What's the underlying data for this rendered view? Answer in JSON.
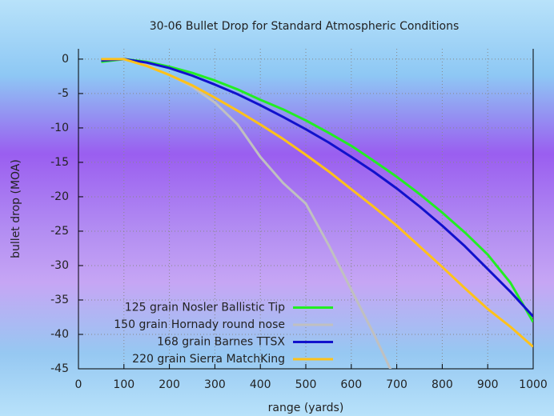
{
  "chart_data": {
    "type": "line",
    "title": "30-06 Bullet Drop for Standard Atmospheric Conditions",
    "xlabel": "range (yards)",
    "ylabel": "bullet drop (MOA)",
    "x": [
      50,
      100,
      150,
      200,
      250,
      300,
      350,
      400,
      450,
      500,
      550,
      600,
      650,
      700,
      750,
      800,
      850,
      900,
      950,
      1000
    ],
    "series": [
      {
        "name": "125 grain Nosler Ballistic Tip",
        "color": "#22ee22",
        "values": [
          -0.4,
          0,
          -0.4,
          -1.1,
          -2,
          -3.1,
          -4.4,
          -5.9,
          -7.3,
          -8.9,
          -10.7,
          -12.6,
          -14.8,
          -17.1,
          -19.6,
          -22.3,
          -25.2,
          -28.4,
          -32.5,
          -38.2
        ]
      },
      {
        "name": "150 grain Hornady round nose",
        "color": "#c0c0c0",
        "values": [
          null,
          0,
          -0.9,
          -2.3,
          -4,
          -6.3,
          -9.5,
          -14.2,
          -18,
          -21,
          -27,
          -33.5,
          -40,
          -47,
          null,
          null,
          null,
          null,
          null,
          null
        ]
      },
      {
        "name": "168 grain Barnes TTSX",
        "color": "#1111cc",
        "values": [
          -0.2,
          0,
          -0.5,
          -1.3,
          -2.4,
          -3.7,
          -5.1,
          -6.7,
          -8.4,
          -10.2,
          -12.1,
          -14.2,
          -16.4,
          -18.8,
          -21.4,
          -24.2,
          -27.2,
          -30.5,
          -33.8,
          -37.4
        ]
      },
      {
        "name": "220 grain Sierra MatchKing",
        "color": "#ffc21a",
        "values": [
          0,
          0,
          -1,
          -2.3,
          -3.8,
          -5.6,
          -7.5,
          -9.5,
          -11.6,
          -13.9,
          -16.3,
          -18.9,
          -21.5,
          -24.2,
          -27.2,
          -30.2,
          -33.3,
          -36.3,
          -38.9,
          -41.8
        ]
      }
    ],
    "xlim": [
      0,
      1000
    ],
    "xticks": [
      0,
      100,
      200,
      300,
      400,
      500,
      600,
      700,
      800,
      900,
      1000
    ],
    "ylim": [
      -45,
      1.5
    ],
    "yticks": [
      0,
      -5,
      -10,
      -15,
      -20,
      -25,
      -30,
      -35,
      -40,
      -45
    ],
    "grid": true,
    "legend": "bottom-left"
  }
}
